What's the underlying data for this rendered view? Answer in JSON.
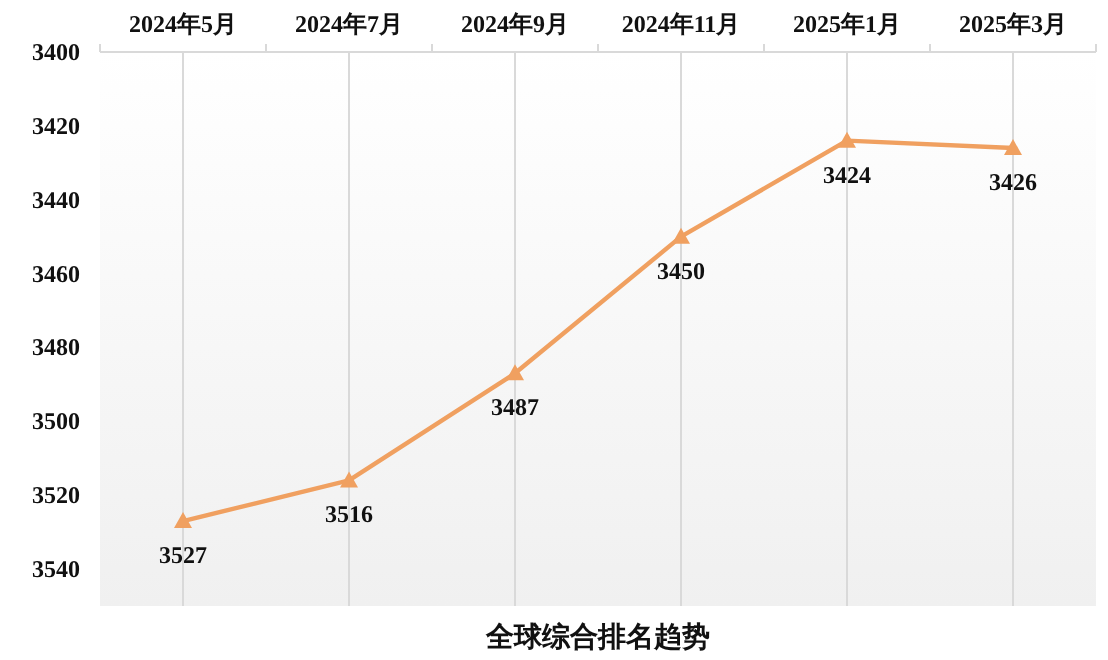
{
  "chart_data": {
    "type": "line",
    "title": "全球综合排名趋势",
    "categories": [
      "2024年5月",
      "2024年7月",
      "2024年9月",
      "2024年11月",
      "2025年1月",
      "2025年3月"
    ],
    "series": [
      {
        "color": "#f0a060",
        "values": [
          3527,
          3516,
          3487,
          3450,
          3424,
          3426
        ]
      }
    ],
    "ylim": [
      3550,
      3400
    ],
    "yticks": [
      3400,
      3420,
      3440,
      3460,
      3480,
      3500,
      3520,
      3540
    ],
    "grid": "x",
    "marker": "triangle",
    "line_style": "solid",
    "data_labels": true
  }
}
